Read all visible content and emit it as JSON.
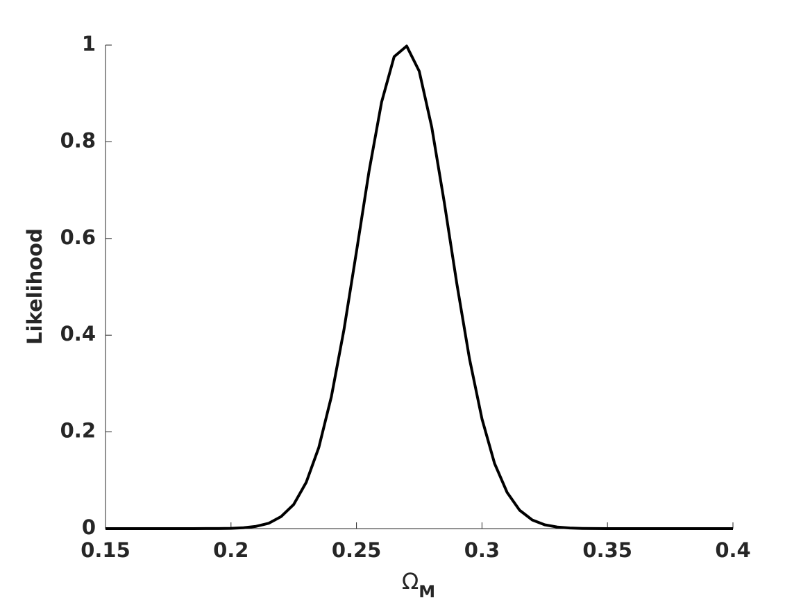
{
  "chart_data": {
    "type": "line",
    "xlabel": "Ω",
    "xlabel_subscript": "M",
    "ylabel": "Likelihood",
    "x": [
      0.15,
      0.155,
      0.16,
      0.165,
      0.17,
      0.175,
      0.18,
      0.185,
      0.19,
      0.195,
      0.2,
      0.205,
      0.21,
      0.215,
      0.22,
      0.225,
      0.23,
      0.235,
      0.24,
      0.245,
      0.25,
      0.255,
      0.26,
      0.265,
      0.27,
      0.275,
      0.28,
      0.285,
      0.29,
      0.295,
      0.3,
      0.305,
      0.31,
      0.315,
      0.32,
      0.325,
      0.33,
      0.335,
      0.34,
      0.345,
      0.35,
      0.355,
      0.36,
      0.365,
      0.37,
      0.375,
      0.38,
      0.385,
      0.39,
      0.395,
      0.4
    ],
    "series": [
      {
        "color": "#000000",
        "values": [
          0,
          0,
          0,
          0,
          0,
          0,
          0,
          0,
          0.0001,
          0.0002,
          0.0006,
          0.0018,
          0.0047,
          0.011,
          0.025,
          0.05,
          0.096,
          0.168,
          0.273,
          0.411,
          0.573,
          0.739,
          0.882,
          0.976,
          0.998,
          0.946,
          0.83,
          0.674,
          0.506,
          0.352,
          0.227,
          0.135,
          0.075,
          0.038,
          0.018,
          0.0079,
          0.0032,
          0.0012,
          0.0004,
          0.0001,
          0,
          0,
          0,
          0,
          0,
          0,
          0,
          0,
          0,
          0,
          0
        ]
      }
    ],
    "xlim": [
      0.15,
      0.4
    ],
    "xticks": [
      0.15,
      0.2,
      0.25,
      0.3,
      0.35,
      0.4
    ],
    "ylim": [
      0,
      1
    ],
    "yticks": [
      0,
      0.2,
      0.4,
      0.6,
      0.8,
      1
    ],
    "grid": false
  }
}
